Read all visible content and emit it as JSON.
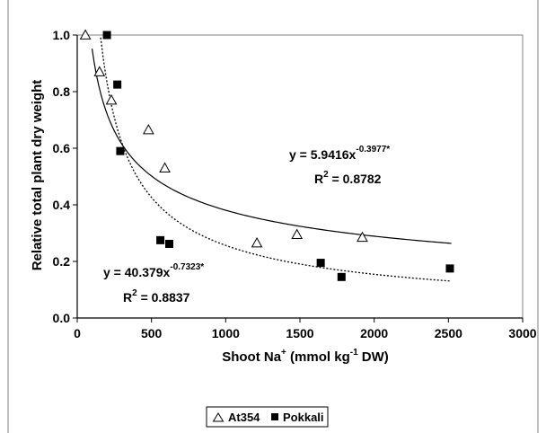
{
  "chart_data": {
    "type": "scatter",
    "xlabel": {
      "main": "Shoot Na",
      "sup1": "+",
      "mid": " (mmol kg",
      "sup2": "-1",
      "end": " DW)"
    },
    "ylabel": "Relative total plant dry weight",
    "xlim": [
      0,
      3000
    ],
    "ylim": [
      0.0,
      1.0
    ],
    "x_ticks": [
      "0",
      "500",
      "1000",
      "1500",
      "2000",
      "2500",
      "3000"
    ],
    "y_ticks": [
      "0.0",
      "0.2",
      "0.4",
      "0.6",
      "0.8",
      "1.0"
    ],
    "grid": false,
    "legend_position": "bottom-center",
    "series": [
      {
        "name": "At354",
        "marker": "open-triangle",
        "points": [
          {
            "x": 55,
            "y": 1.0
          },
          {
            "x": 150,
            "y": 0.87
          },
          {
            "x": 230,
            "y": 0.77
          },
          {
            "x": 480,
            "y": 0.665
          },
          {
            "x": 590,
            "y": 0.53
          },
          {
            "x": 1210,
            "y": 0.265
          },
          {
            "x": 1480,
            "y": 0.295
          },
          {
            "x": 1920,
            "y": 0.285
          }
        ],
        "fit": {
          "a": 5.9416,
          "b": -0.3977,
          "style": "solid",
          "x_start": 100,
          "x_end": 2520,
          "equation": {
            "lhs": "y = 5.9416x",
            "exp": "-0.3977*"
          },
          "r2": {
            "r": "R",
            "sup": "2",
            "val": " = 0.8782"
          }
        }
      },
      {
        "name": "Pokkali",
        "marker": "filled-square",
        "points": [
          {
            "x": 200,
            "y": 1.0
          },
          {
            "x": 270,
            "y": 0.825
          },
          {
            "x": 290,
            "y": 0.59
          },
          {
            "x": 560,
            "y": 0.275
          },
          {
            "x": 620,
            "y": 0.262
          },
          {
            "x": 1640,
            "y": 0.195
          },
          {
            "x": 1780,
            "y": 0.145
          },
          {
            "x": 2510,
            "y": 0.175
          }
        ],
        "fit": {
          "a": 40.379,
          "b": -0.7323,
          "style": "dotted",
          "x_start": 158,
          "x_end": 2520,
          "equation": {
            "lhs": "y = 40.379x",
            "exp": "-0.7323*"
          },
          "r2": {
            "r": "R",
            "sup": "2",
            "val": " = 0.8837"
          }
        }
      }
    ],
    "colors": {
      "ink": "#000000",
      "frame": "#808080",
      "background": "#ffffff"
    }
  }
}
